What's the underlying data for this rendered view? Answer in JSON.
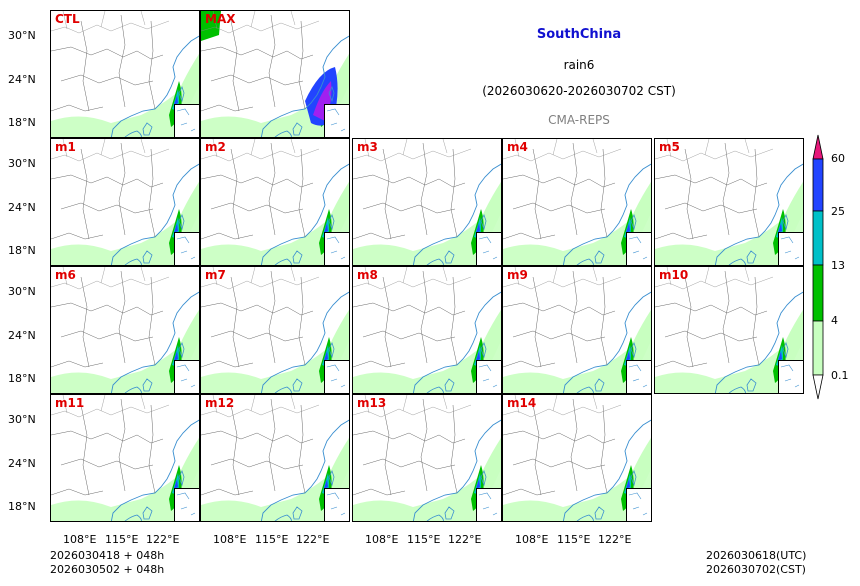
{
  "title": {
    "region": "SouthChina",
    "variable": "rain6",
    "period": "(2026030620-2026030702 CST)",
    "source": "CMA-REPS"
  },
  "panels": [
    "CTL",
    "MAX",
    "m1",
    "m2",
    "m3",
    "m4",
    "m5",
    "m6",
    "m7",
    "m8",
    "m9",
    "m10",
    "m11",
    "m12",
    "m13",
    "m14"
  ],
  "axes": {
    "lat_ticks": [
      "30°N",
      "24°N",
      "18°N"
    ],
    "lon_ticks": [
      "108°E",
      "115°E",
      "122°E"
    ]
  },
  "colorbar": {
    "levels": [
      "60",
      "25",
      "13",
      "4",
      "0.1"
    ],
    "colors": [
      "#e6187a",
      "#2244ff",
      "#00c0c8",
      "#00c000",
      "#c8ffc0"
    ]
  },
  "footer": {
    "left1": "2026030418  +  048h",
    "left2": "2026030502  +  048h",
    "right1": "2026030618(UTC)",
    "right2": "2026030702(CST)"
  }
}
